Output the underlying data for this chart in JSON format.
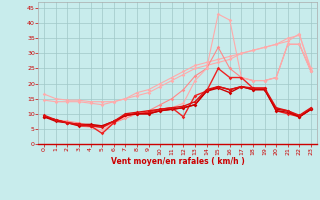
{
  "xlabel": "Vent moyen/en rafales ( km/h )",
  "background_color": "#c8ecec",
  "grid_color": "#a0c8c8",
  "x_values": [
    0,
    1,
    2,
    3,
    4,
    5,
    6,
    7,
    8,
    9,
    10,
    11,
    12,
    13,
    14,
    15,
    16,
    17,
    18,
    19,
    20,
    21,
    22,
    23
  ],
  "ylim": [
    0,
    47
  ],
  "yticks": [
    0,
    5,
    10,
    15,
    20,
    25,
    30,
    35,
    40,
    45
  ],
  "lines": [
    {
      "color": "#ffaaaa",
      "linewidth": 0.8,
      "marker": "D",
      "markersize": 1.8,
      "values": [
        16.5,
        15,
        14.5,
        14.5,
        14,
        14,
        14,
        15,
        17,
        18,
        20,
        22,
        24,
        26,
        27,
        28,
        29,
        30,
        31,
        32,
        33,
        35,
        36,
        25
      ]
    },
    {
      "color": "#ffaaaa",
      "linewidth": 0.8,
      "marker": "D",
      "markersize": 1.8,
      "values": [
        14.5,
        14,
        14,
        14,
        13.5,
        13,
        14,
        15,
        16,
        17,
        19,
        21,
        23,
        25,
        26,
        27,
        28,
        30,
        31,
        32,
        33,
        34,
        36.5,
        24
      ]
    },
    {
      "color": "#ff8888",
      "linewidth": 0.8,
      "marker": "D",
      "markersize": 1.8,
      "values": [
        9,
        8,
        7.5,
        7,
        6,
        5.5,
        7,
        8.5,
        10,
        11,
        13,
        15,
        18,
        22.5,
        25,
        32,
        25,
        22,
        21,
        21,
        22,
        33,
        33,
        24
      ]
    },
    {
      "color": "#ffaaaa",
      "linewidth": 0.8,
      "marker": "D",
      "markersize": 1.8,
      "values": [
        9,
        8,
        7,
        6,
        5.5,
        4.5,
        7,
        9,
        10,
        11,
        11.5,
        12,
        13.5,
        21,
        25,
        43,
        41,
        22,
        21,
        21,
        22,
        33,
        33,
        24
      ]
    },
    {
      "color": "#ee2222",
      "linewidth": 1.0,
      "marker": "D",
      "markersize": 1.8,
      "values": [
        9,
        8,
        7,
        6.5,
        6,
        3.5,
        7,
        9.5,
        10,
        10.5,
        11.5,
        12,
        9,
        16,
        17.5,
        25,
        22,
        22,
        18.5,
        18.5,
        11,
        10,
        9,
        11.5
      ]
    },
    {
      "color": "#cc0000",
      "linewidth": 1.0,
      "marker": "D",
      "markersize": 1.8,
      "values": [
        9,
        8,
        7,
        6.5,
        6.5,
        6,
        7.5,
        9.5,
        10,
        10,
        11,
        11.5,
        12,
        13,
        17.5,
        19,
        18,
        19,
        18,
        18,
        11,
        10.5,
        9,
        11.5
      ]
    },
    {
      "color": "#cc0000",
      "linewidth": 1.0,
      "marker": "D",
      "markersize": 1.8,
      "values": [
        9,
        7.5,
        7,
        6,
        6,
        6,
        7.5,
        9.5,
        10,
        10,
        11,
        11.5,
        12,
        13,
        17.5,
        18.5,
        17,
        19,
        18,
        18,
        11.5,
        11,
        9,
        11.5
      ]
    },
    {
      "color": "#dd1111",
      "linewidth": 1.0,
      "marker": "D",
      "markersize": 1.8,
      "values": [
        9.5,
        8,
        7,
        6.5,
        6,
        5.5,
        7.5,
        10,
        10.5,
        11,
        11.5,
        12,
        12.5,
        14,
        18,
        19,
        18,
        19,
        18.5,
        18.5,
        12,
        11,
        9.5,
        12
      ]
    }
  ]
}
